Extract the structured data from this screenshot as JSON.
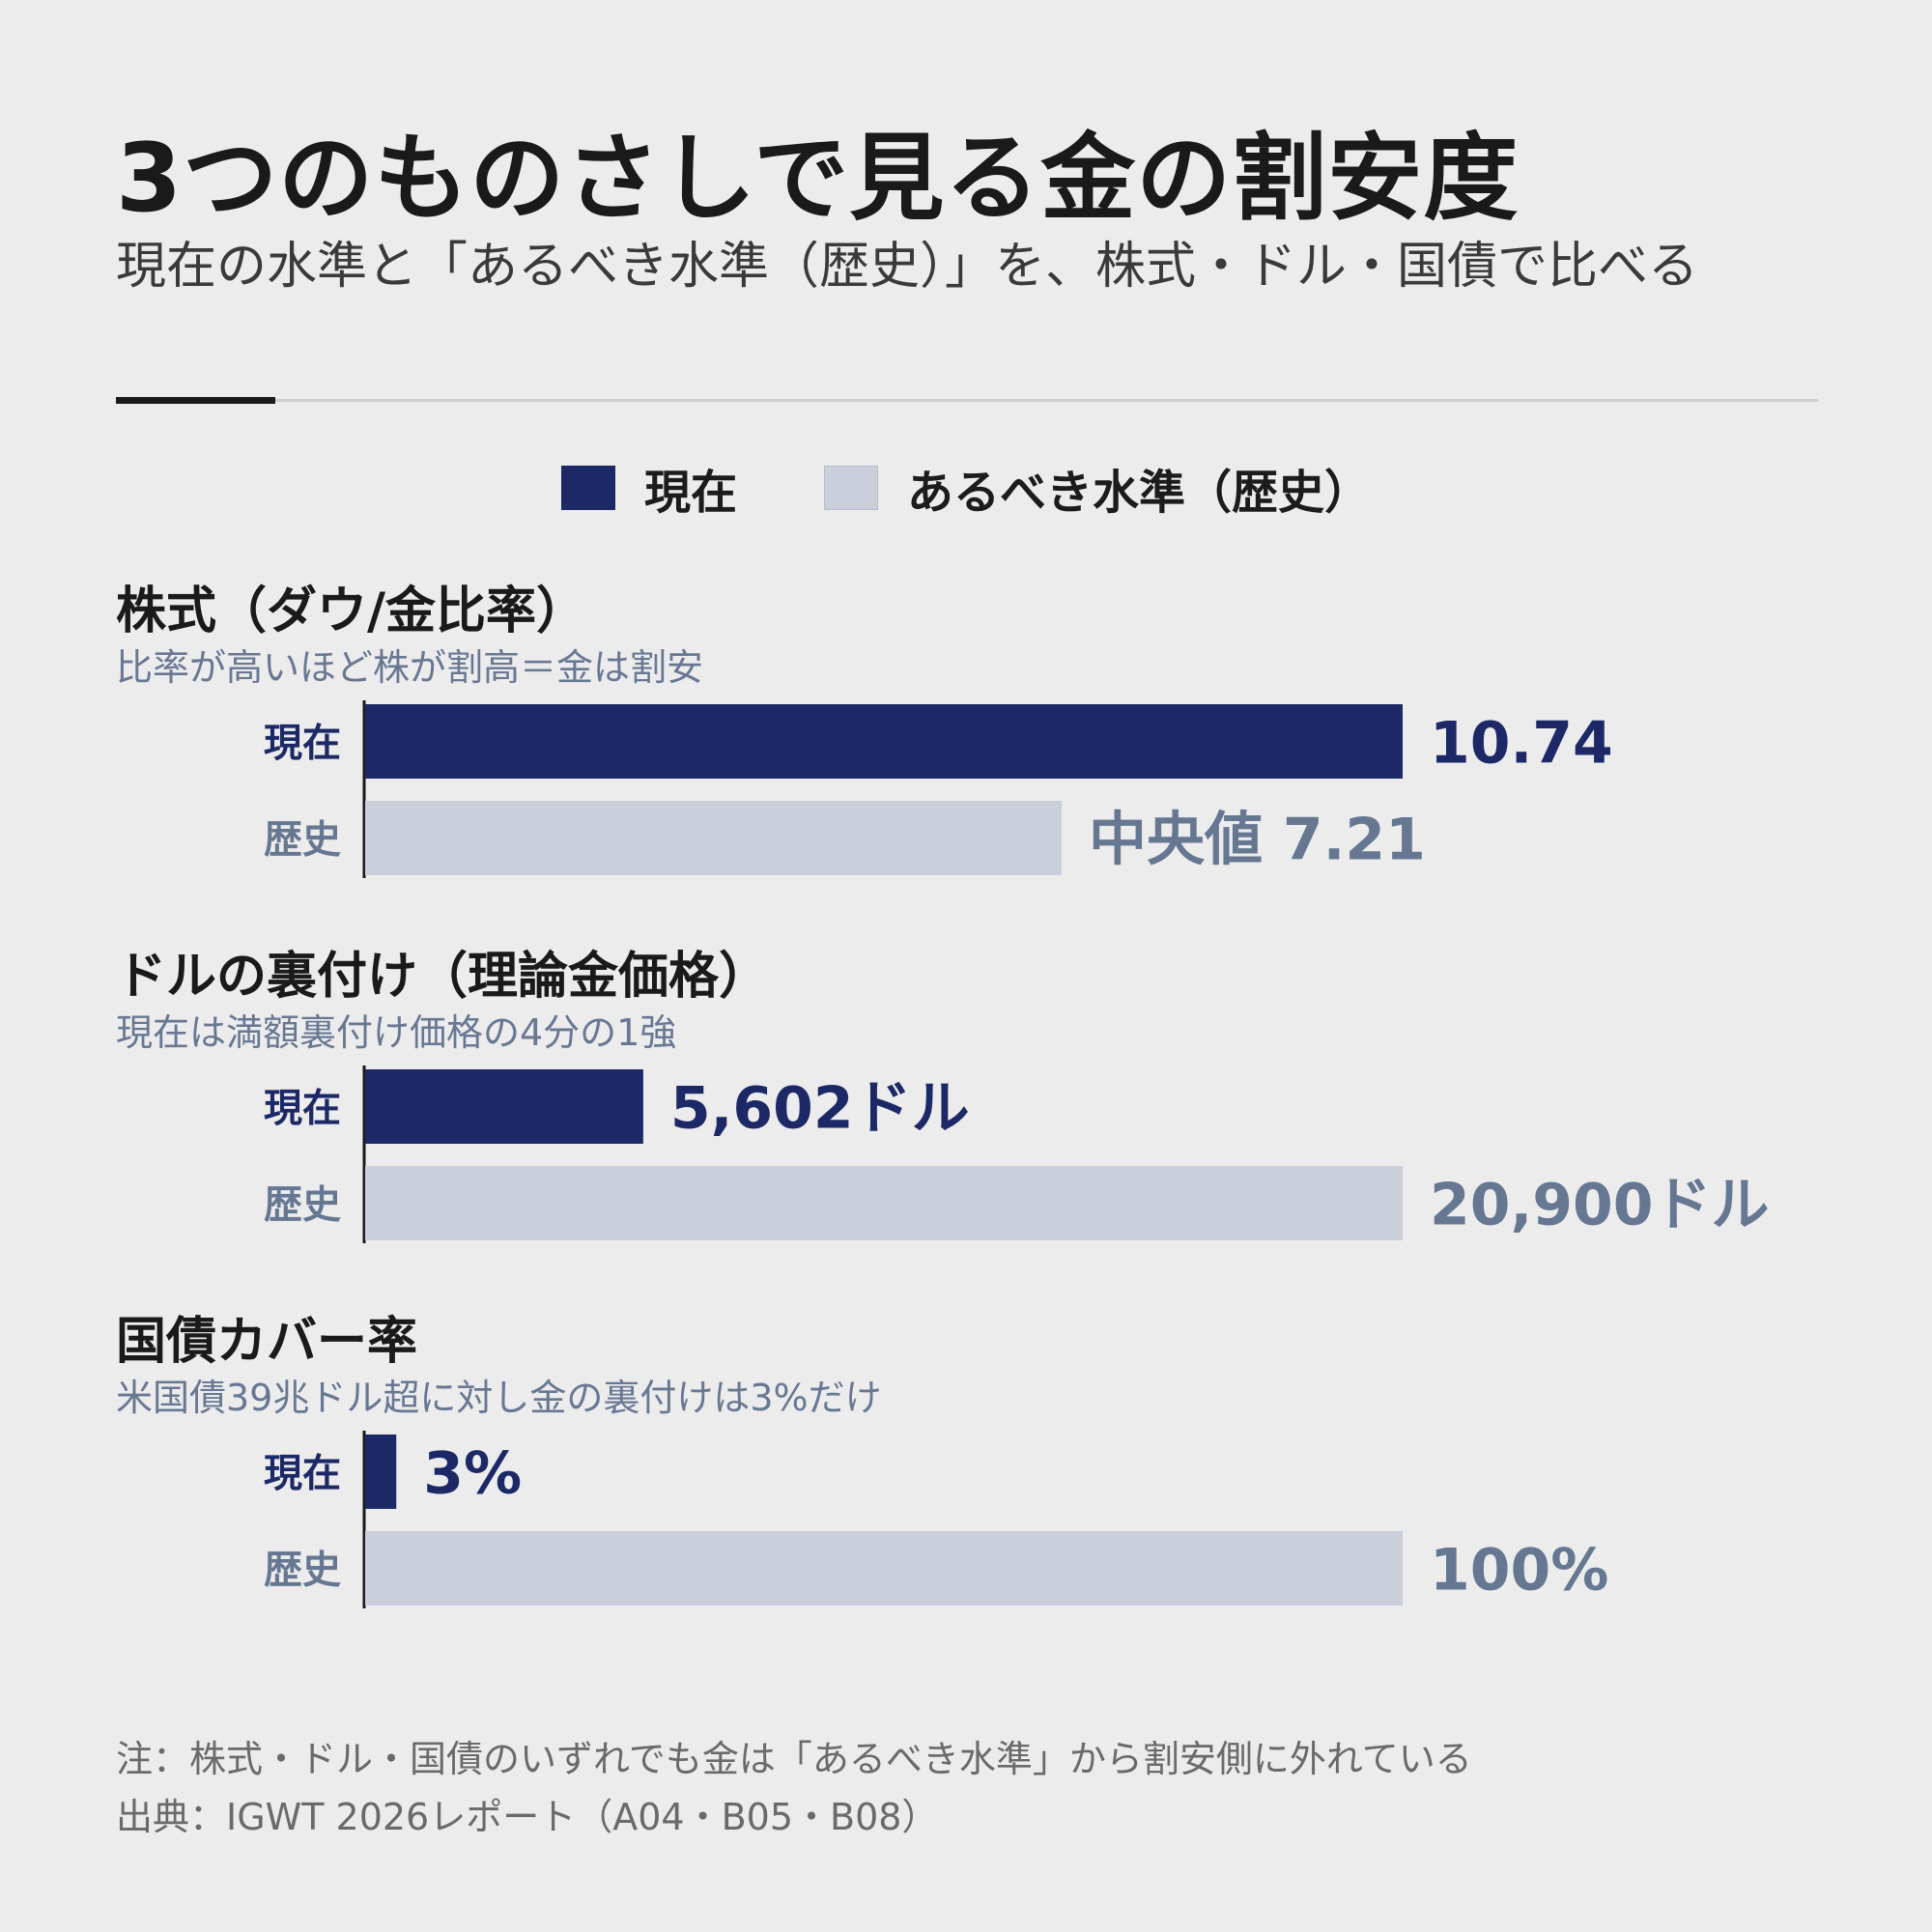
{
  "title": "3つのものさしで見る金の割安度",
  "subtitle": "現在の水準と「あるべき水準（歴史）」を、株式・ドル・国債で比べる",
  "legend": {
    "current": "現在",
    "history": "あるべき水準（歴史）"
  },
  "colors": {
    "current": "#1c2966",
    "history": "#cbcfdb",
    "history_label": "#667792"
  },
  "panels": [
    {
      "title": "株式（ダウ/金比率）",
      "subtitle": "比率が高いほど株が割高＝金は割安"
    },
    {
      "title": "ドルの裏付け（理論金価格）",
      "subtitle": "現在は満額裏付け価格の4分の1強"
    },
    {
      "title": "国債カバー率",
      "subtitle": "米国債39兆ドル超に対し金の裏付けは3%だけ"
    }
  ],
  "chart_data": [
    {
      "type": "bar",
      "orientation": "horizontal",
      "categories": [
        "現在",
        "歴史"
      ],
      "values": [
        10.74,
        7.21
      ],
      "value_labels": [
        "10.74",
        "中央値 7.21"
      ],
      "xlim": [
        0,
        10.74
      ]
    },
    {
      "type": "bar",
      "orientation": "horizontal",
      "categories": [
        "現在",
        "歴史"
      ],
      "values": [
        5602,
        20900
      ],
      "value_labels": [
        "5,602ドル",
        "20,900ドル"
      ],
      "xlim": [
        0,
        20900
      ]
    },
    {
      "type": "bar",
      "orientation": "horizontal",
      "categories": [
        "現在",
        "歴史"
      ],
      "values": [
        3,
        100
      ],
      "value_labels": [
        "3%",
        "100%"
      ],
      "xlim": [
        0,
        100
      ]
    }
  ],
  "footnotes": {
    "note": "注：株式・ドル・国債のいずれでも金は「あるべき水準」から割安側に外れている",
    "source": "出典：IGWT 2026レポート（A04・B05・B08）"
  }
}
